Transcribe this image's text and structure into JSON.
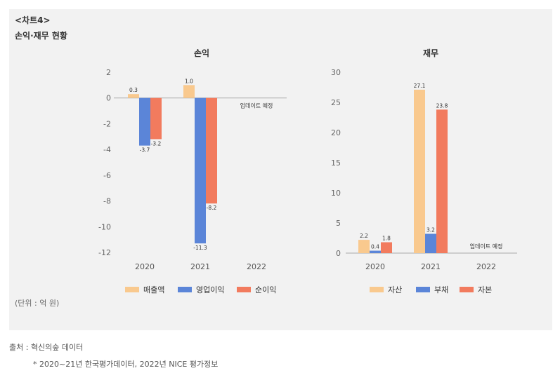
{
  "chart_label": "<차트4>",
  "subtitle": "손익·재무 현황",
  "unit": "(단위 : 억 원)",
  "source": "출처 : 혁신의숲 데이터",
  "note": "* 2020~21년 한국평가데이터, 2022년 NICE 평가정보",
  "colors": {
    "orange": "#f9c98e",
    "blue": "#5b85d8",
    "red": "#f27b5e"
  },
  "chart_data": [
    {
      "type": "bar",
      "title": "손익",
      "categories": [
        "2020",
        "2021",
        "2022"
      ],
      "series": [
        {
          "name": "매출액",
          "color": "#f9c98e",
          "values": [
            0.3,
            1.0,
            null
          ]
        },
        {
          "name": "영업이익",
          "color": "#5b85d8",
          "values": [
            -3.7,
            -11.3,
            null
          ]
        },
        {
          "name": "순이익",
          "color": "#f27b5e",
          "values": [
            -3.2,
            -8.2,
            null
          ]
        }
      ],
      "value_labels": [
        [
          "0.3",
          "1.0",
          null
        ],
        [
          "-3.7",
          "-11.3",
          null
        ],
        [
          "-3.2",
          "-8.2",
          null
        ]
      ],
      "ylim": [
        -12,
        2
      ],
      "yticks": [
        2,
        0,
        -2,
        -4,
        -6,
        -8,
        -10,
        -12
      ],
      "annotation": "업데이트 예정",
      "annotation_category": "2022"
    },
    {
      "type": "bar",
      "title": "재무",
      "categories": [
        "2020",
        "2021",
        "2022"
      ],
      "series": [
        {
          "name": "자산",
          "color": "#f9c98e",
          "values": [
            2.2,
            27.1,
            null
          ]
        },
        {
          "name": "부채",
          "color": "#5b85d8",
          "values": [
            0.4,
            3.2,
            null
          ]
        },
        {
          "name": "자본",
          "color": "#f27b5e",
          "values": [
            1.8,
            23.8,
            null
          ]
        }
      ],
      "value_labels": [
        [
          "2.2",
          "27.1",
          null
        ],
        [
          "0.4",
          "3.2",
          null
        ],
        [
          "1.8",
          "23.8",
          null
        ]
      ],
      "ylim": [
        0,
        30
      ],
      "yticks": [
        30,
        25,
        20,
        15,
        10,
        5,
        0
      ],
      "annotation": "업데이트 예정",
      "annotation_category": "2022"
    }
  ]
}
